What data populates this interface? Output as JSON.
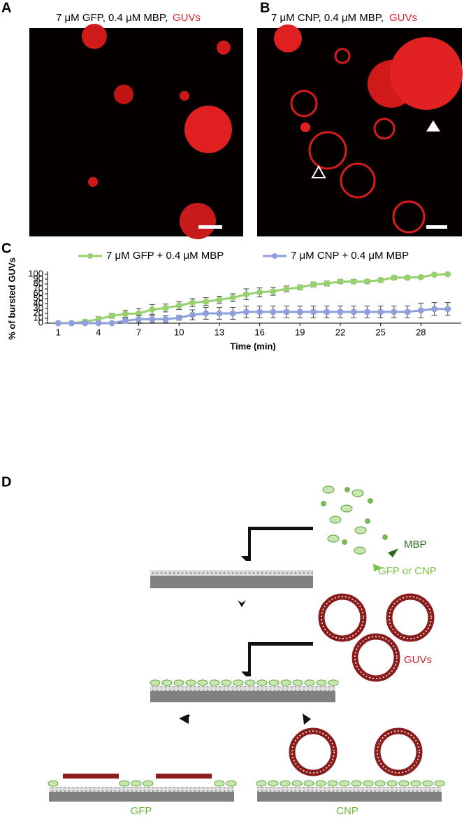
{
  "panels": {
    "A": {
      "label": "A",
      "title": "7 μM GFP, 0.4 μM MBP,",
      "title_highlight": "GUVs"
    },
    "B": {
      "label": "B",
      "title": "7 μM CNP, 0.4 μM MBP,",
      "title_highlight": "GUVs"
    },
    "C": {
      "label": "C"
    },
    "D": {
      "label": "D",
      "mbp": "MBP",
      "protein": "GFP or CNP",
      "guvs": "GUVs",
      "left": "GFP",
      "right": "CNP"
    }
  },
  "chart_data": {
    "type": "line",
    "xlabel": "Time (min)",
    "ylabel": "% of bursted GUVs",
    "x": [
      1,
      2,
      3,
      4,
      5,
      6,
      7,
      8,
      9,
      10,
      11,
      12,
      13,
      14,
      15,
      16,
      17,
      18,
      19,
      20,
      21,
      22,
      23,
      24,
      25,
      26,
      27,
      28,
      29,
      30
    ],
    "series": [
      {
        "name": "7 μM GFP + 0.4 μM MBP",
        "color": "#97d16f",
        "values": [
          0,
          0,
          3,
          8,
          15,
          19,
          20,
          28,
          31,
          36,
          42,
          44,
          48,
          52,
          59,
          63,
          65,
          70,
          73,
          79,
          81,
          85,
          85,
          85,
          88,
          93,
          93,
          94,
          99,
          100
        ],
        "errors": [
          0,
          0,
          4,
          5,
          5,
          7,
          10,
          10,
          8,
          8,
          8,
          8,
          7,
          8,
          11,
          9,
          8,
          6,
          5,
          5,
          5,
          4,
          4,
          4,
          4,
          4,
          4,
          3,
          2,
          0
        ]
      },
      {
        "name": "7 μM CNP + 0.4 μM MBP",
        "color": "#8e9fdb",
        "values": [
          0,
          0,
          0,
          0,
          0,
          5,
          8,
          8,
          8,
          11,
          17,
          20,
          20,
          20,
          23,
          23,
          23,
          23,
          23,
          23,
          23,
          23,
          23,
          23,
          23,
          23,
          23,
          26,
          29,
          29
        ],
        "errors": [
          0,
          0,
          0,
          0,
          0,
          5,
          7,
          7,
          7,
          5,
          10,
          12,
          12,
          12,
          12,
          12,
          12,
          12,
          12,
          12,
          12,
          12,
          12,
          12,
          12,
          12,
          12,
          15,
          13,
          13
        ]
      }
    ],
    "xlim": [
      0,
      31
    ],
    "xticks": [
      1,
      4,
      7,
      10,
      13,
      16,
      19,
      22,
      25,
      28
    ],
    "ylim": [
      0,
      100
    ],
    "yticks": [
      0,
      10,
      20,
      30,
      40,
      50,
      60,
      70,
      80,
      90,
      100
    ]
  }
}
